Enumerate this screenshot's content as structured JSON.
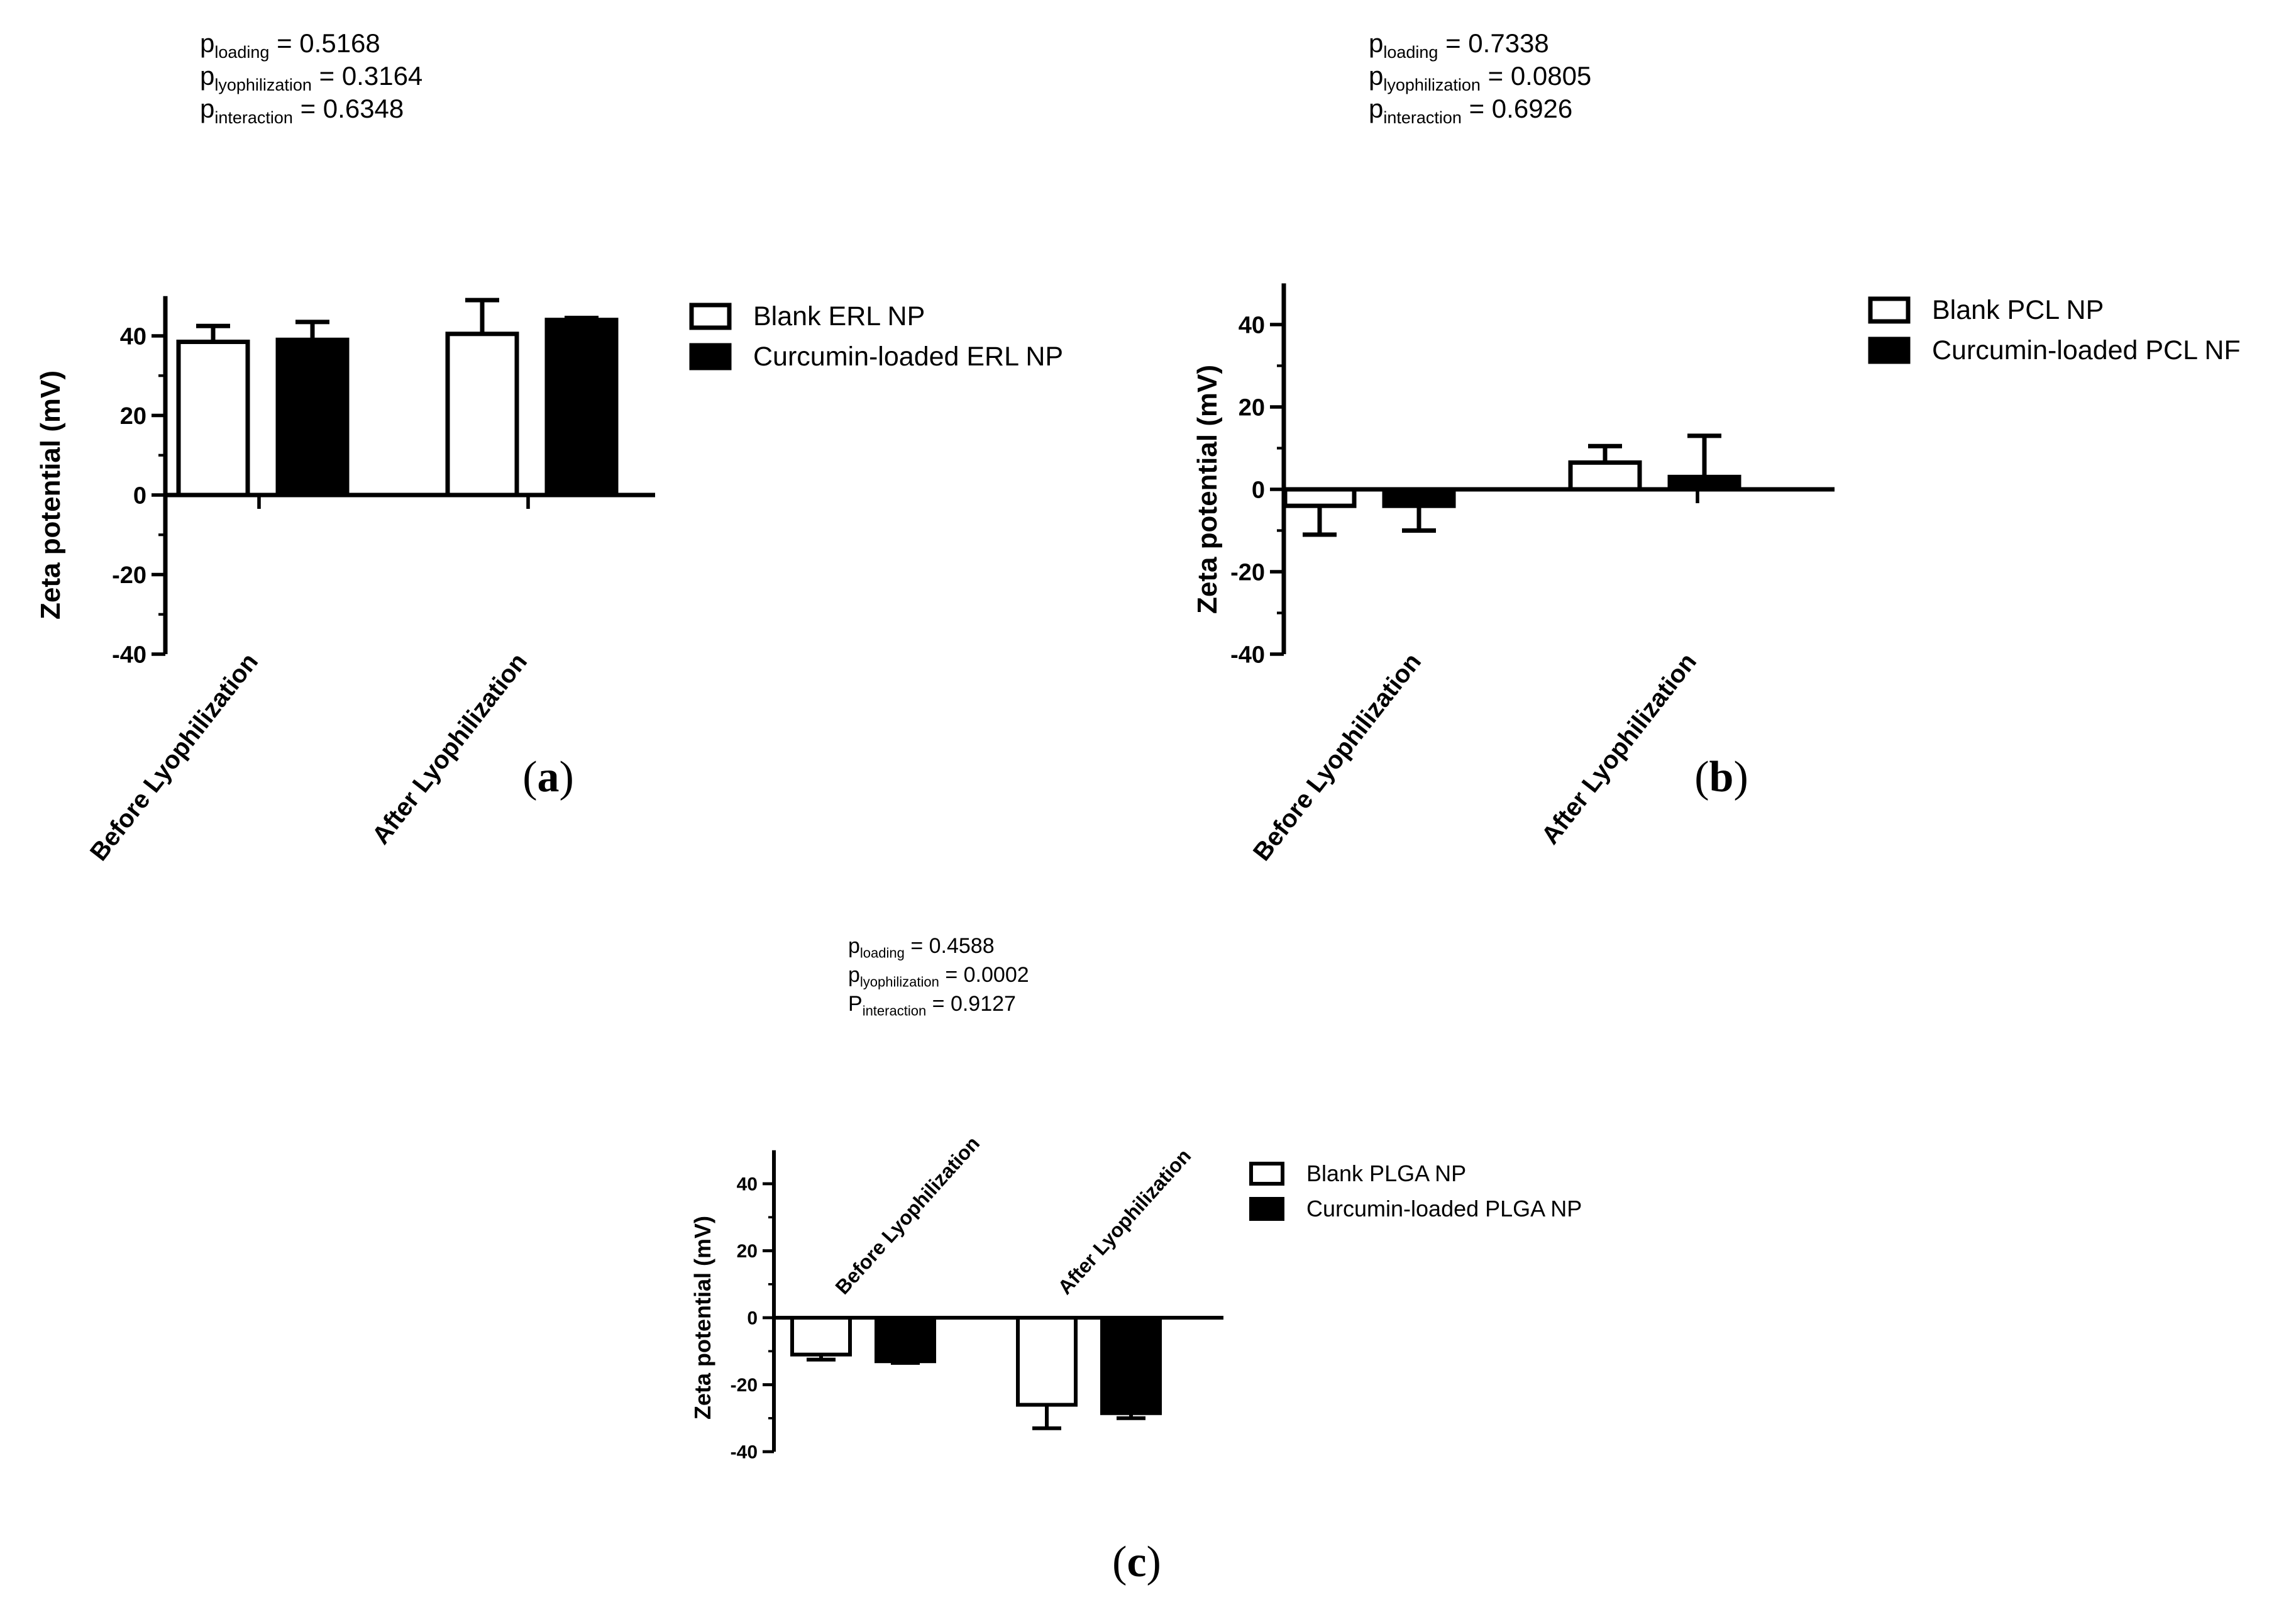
{
  "chart_data": [
    {
      "panel": "(a)",
      "panel_letter": "a",
      "type": "bar",
      "stats": [
        {
          "base": "p",
          "sub": "loading",
          "value": "= 0.5168"
        },
        {
          "base": "p",
          "sub": "lyophilization",
          "value": "= 0.3164"
        },
        {
          "base": "p",
          "sub": "interaction",
          "value": "= 0.6348"
        }
      ],
      "ylabel": "Zeta potential (mV)",
      "ylim": [
        -40,
        50
      ],
      "yticks": [
        "-40",
        "-20",
        "0",
        "20",
        "40"
      ],
      "categories": [
        "Before Lyophilization",
        "After Lyophilization"
      ],
      "series": [
        {
          "name": "Blank ERL NP",
          "fill": "#ffffff",
          "values": [
            38.5,
            40.5
          ],
          "errors": [
            4,
            8.5
          ]
        },
        {
          "name": "Curcumin-loaded ERL NP",
          "fill": "#000000",
          "values": [
            39,
            44
          ],
          "errors": [
            4.5,
            0.5
          ]
        }
      ]
    },
    {
      "panel": "(b)",
      "panel_letter": "b",
      "type": "bar",
      "stats": [
        {
          "base": "p",
          "sub": "loading",
          "value": "= 0.7338"
        },
        {
          "base": "p",
          "sub": "lyophilization",
          "value": "= 0.0805"
        },
        {
          "base": "p",
          "sub": "interaction",
          "value": "= 0.6926"
        }
      ],
      "ylabel": "Zeta potential (mV)",
      "ylim": [
        -40,
        50
      ],
      "yticks": [
        "-40",
        "-20",
        "0",
        "20",
        "40"
      ],
      "categories": [
        "Before Lyophilization",
        "After Lyophilization"
      ],
      "series": [
        {
          "name": "Blank PCL NP",
          "fill": "#ffffff",
          "values": [
            -4,
            6.5
          ],
          "errors": [
            7,
            4
          ]
        },
        {
          "name": "Curcumin-loaded PCL NF",
          "fill": "#000000",
          "values": [
            -4,
            3
          ],
          "errors": [
            6,
            10
          ]
        }
      ]
    },
    {
      "panel": "(c)",
      "panel_letter": "c",
      "type": "bar",
      "stats": [
        {
          "base": "p",
          "sub": "loading",
          "value": "= 0.4588"
        },
        {
          "base": "p",
          "sub": "lyophilization",
          "value": "= 0.0002"
        },
        {
          "base": "P",
          "sub": "interaction",
          "value": "= 0.9127"
        }
      ],
      "ylabel": "Zeta potential (mV)",
      "ylim": [
        -40,
        50
      ],
      "yticks": [
        "-40",
        "-20",
        "0",
        "20",
        "40"
      ],
      "categories": [
        "Before Lyophilization",
        "After Lyophilization"
      ],
      "series": [
        {
          "name": "Blank PLGA NP",
          "fill": "#ffffff",
          "values": [
            -11,
            -26
          ],
          "errors": [
            1.5,
            7
          ]
        },
        {
          "name": "Curcumin-loaded PLGA NP",
          "fill": "#000000",
          "values": [
            -13,
            -28.5
          ],
          "errors": [
            0.5,
            1.5
          ]
        }
      ]
    }
  ]
}
